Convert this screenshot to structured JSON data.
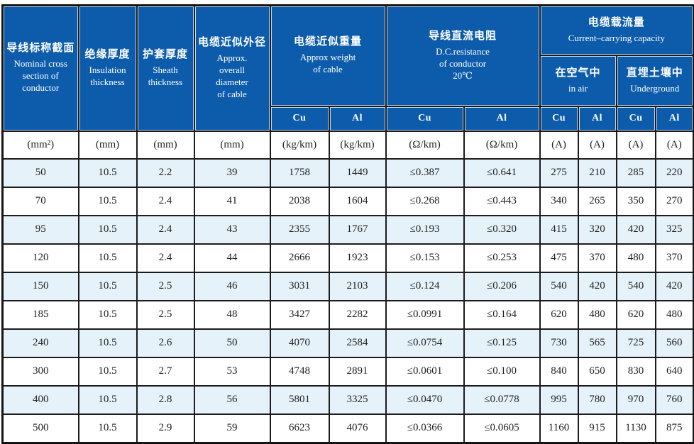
{
  "header": {
    "nominal": {
      "zh": "导线标称截面",
      "en_lines": [
        "Nominal cross",
        "section of",
        "conductor"
      ]
    },
    "insulation": {
      "zh": "绝缘厚度",
      "en_lines": [
        "Insulation",
        "thickness"
      ]
    },
    "sheath": {
      "zh": "护套厚度",
      "en_lines": [
        "Sheath",
        "thickness"
      ]
    },
    "diameter": {
      "zh": "电缆近似外径",
      "en_lines": [
        "Approx.",
        "overall",
        "diameter",
        "of cable"
      ]
    },
    "weight": {
      "zh": "电缆近似重量",
      "en_lines": [
        "Approx weight",
        "of cable"
      ]
    },
    "resistance": {
      "zh": "导线直流电阻",
      "en_lines": [
        "D.C.resistance",
        "of conductor",
        "20℃"
      ]
    },
    "current": {
      "zh": "电缆载流量",
      "en": "Current–carrying capacity"
    },
    "in_air": {
      "zh": "在空气中",
      "en": "in air"
    },
    "underground": {
      "zh": "直埋土壤中",
      "en": "Underground"
    },
    "cu_al": [
      "Cu",
      "Al",
      "Cu",
      "Al",
      "Cu",
      "Al",
      "Cu",
      "Al"
    ]
  },
  "units": [
    "(mm²)",
    "(mm)",
    "(mm)",
    "(mm)",
    "(kg/km)",
    "(kg/km)",
    "(Ω/km)",
    "(Ω/km)",
    "(A)",
    "(A)",
    "(A)",
    "(A)"
  ],
  "rows": [
    [
      "50",
      "10.5",
      "2.2",
      "39",
      "1758",
      "1449",
      "≤0.387",
      "≤0.641",
      "275",
      "210",
      "285",
      "220"
    ],
    [
      "70",
      "10.5",
      "2.4",
      "41",
      "2038",
      "1604",
      "≤0.268",
      "≤0.443",
      "340",
      "265",
      "350",
      "270"
    ],
    [
      "95",
      "10.5",
      "2.4",
      "43",
      "2355",
      "1767",
      "≤0.193",
      "≤0.320",
      "415",
      "320",
      "420",
      "325"
    ],
    [
      "120",
      "10.5",
      "2.4",
      "44",
      "2666",
      "1923",
      "≤0.153",
      "≤0.253",
      "475",
      "370",
      "480",
      "370"
    ],
    [
      "150",
      "10.5",
      "2.5",
      "46",
      "3031",
      "2103",
      "≤0.124",
      "≤0.206",
      "540",
      "420",
      "540",
      "420"
    ],
    [
      "185",
      "10.5",
      "2.5",
      "48",
      "3427",
      "2282",
      "≤0.0991",
      "≤0.164",
      "620",
      "480",
      "620",
      "480"
    ],
    [
      "240",
      "10.5",
      "2.6",
      "50",
      "4070",
      "2584",
      "≤0.0754",
      "≤0.125",
      "730",
      "565",
      "725",
      "560"
    ],
    [
      "300",
      "10.5",
      "2.7",
      "53",
      "4748",
      "2891",
      "≤0.0601",
      "≤0.100",
      "840",
      "650",
      "830",
      "640"
    ],
    [
      "400",
      "10.5",
      "2.8",
      "56",
      "5801",
      "3325",
      "≤0.0470",
      "≤0.0778",
      "995",
      "780",
      "970",
      "760"
    ],
    [
      "500",
      "10.5",
      "2.9",
      "59",
      "6623",
      "4076",
      "≤0.0366",
      "≤0.0605",
      "1160",
      "915",
      "1130",
      "875"
    ]
  ],
  "colors": {
    "header_blue": "#0d5cac",
    "zebra_blue": "#e6f2f9",
    "grid": "#1c1c1c"
  }
}
